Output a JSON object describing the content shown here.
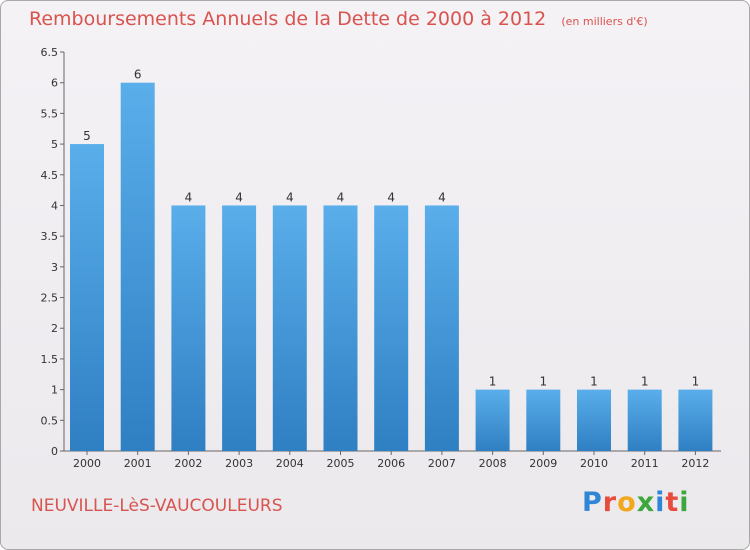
{
  "title": "Remboursements Annuels de la Dette de 2000 à 2012",
  "subtitle": "(en milliers d'€)",
  "commune": "NEUVILLE-LèS-VAUCOULEURS",
  "logo": {
    "letters": [
      "P",
      "r",
      "o",
      "x",
      "i",
      "t",
      "i"
    ],
    "colors": [
      "#2f86d6",
      "#e84c3d",
      "#f2a81d",
      "#3ca83c",
      "#2f86d6",
      "#e84c3d",
      "#3ca83c"
    ]
  },
  "colors": {
    "bar_light": "#5aaeea",
    "bar_dark": "#2f7fc3",
    "title": "#d9534f"
  },
  "chart_data": {
    "type": "bar",
    "categories": [
      "2000",
      "2001",
      "2002",
      "2003",
      "2004",
      "2005",
      "2006",
      "2007",
      "2008",
      "2009",
      "2010",
      "2011",
      "2012"
    ],
    "values": [
      5,
      6,
      4,
      4,
      4,
      4,
      4,
      4,
      1,
      1,
      1,
      1,
      1
    ],
    "ylim": [
      0,
      6.5
    ],
    "yticks": [
      "0",
      "0.5",
      "1",
      "1.5",
      "2",
      "2.5",
      "3",
      "3.5",
      "4",
      "4.5",
      "5",
      "5.5",
      "6",
      "6.5"
    ],
    "xlabel": "",
    "ylabel": "",
    "grid": false,
    "legend": "none"
  }
}
